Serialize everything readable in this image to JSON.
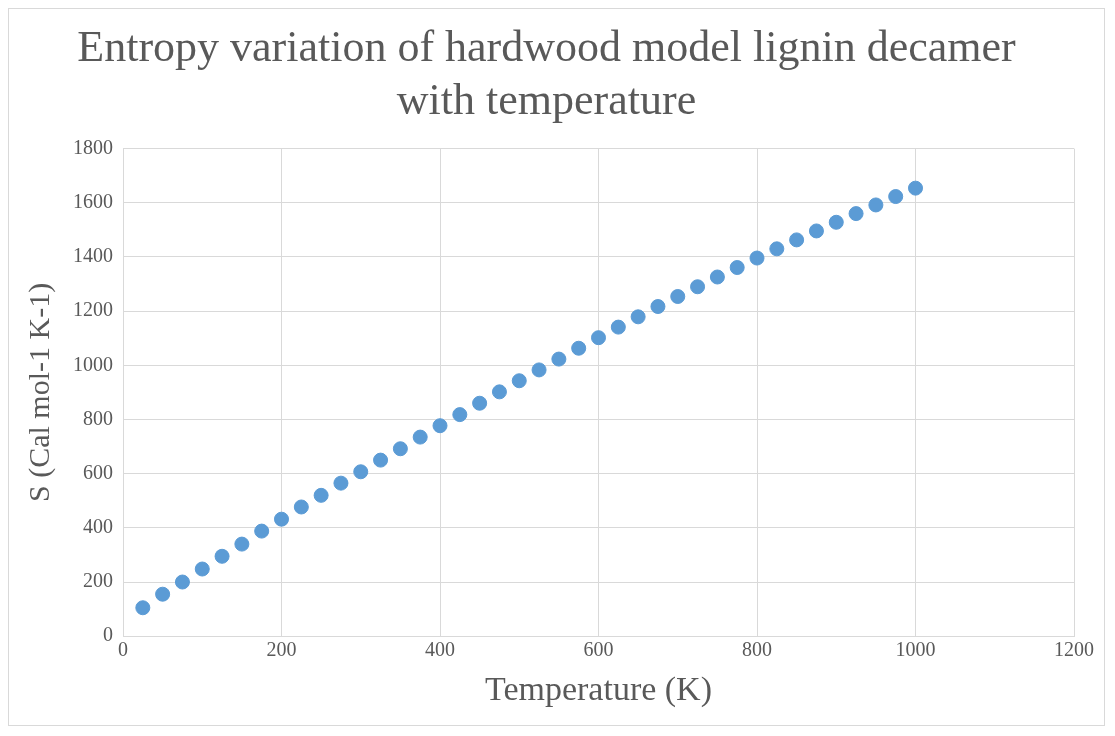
{
  "chart_data": {
    "type": "scatter",
    "title": "Entropy variation of hardwood model lignin decamer with temperature",
    "xlabel": "Temperature (K)",
    "ylabel": "S (Cal mol-1 K-1)",
    "x": [
      25,
      50,
      75,
      100,
      125,
      150,
      175,
      200,
      225,
      250,
      275,
      300,
      325,
      350,
      375,
      400,
      425,
      450,
      475,
      500,
      525,
      550,
      575,
      600,
      625,
      650,
      675,
      700,
      725,
      750,
      775,
      800,
      825,
      850,
      875,
      900,
      925,
      950,
      975,
      1000
    ],
    "series": [
      {
        "color": "#5b9bd5",
        "values": [
          105,
          155,
          200,
          248,
          295,
          340,
          388,
          432,
          477,
          520,
          565,
          607,
          650,
          692,
          735,
          777,
          818,
          860,
          902,
          943,
          983,
          1023,
          1063,
          1102,
          1141,
          1179,
          1217,
          1254,
          1290,
          1326,
          1361,
          1396,
          1430,
          1463,
          1496,
          1528,
          1560,
          1592,
          1623,
          1654
        ]
      }
    ],
    "xlim": [
      0,
      1200
    ],
    "xticks": [
      0,
      200,
      400,
      600,
      800,
      1000,
      1200
    ],
    "ylim": [
      0,
      1800
    ],
    "yticks": [
      0,
      200,
      400,
      600,
      800,
      1000,
      1200,
      1400,
      1600,
      1800
    ],
    "grid": true,
    "legend": false,
    "marker": "circle"
  }
}
